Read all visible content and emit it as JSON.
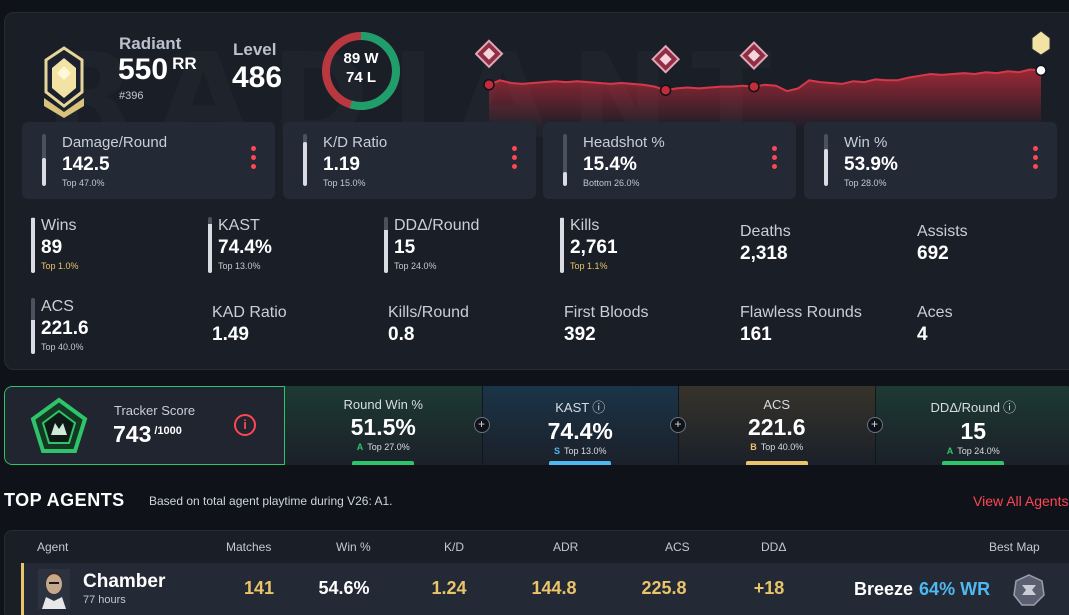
{
  "rank": {
    "name": "Radiant",
    "rr": "550",
    "rr_unit": "RR",
    "leaderboard": "#396",
    "watermark": "RADIANT"
  },
  "level": {
    "label": "Level",
    "value": "486"
  },
  "record": {
    "wins": "89 W",
    "losses": "74 L",
    "win_fraction": 0.546
  },
  "rr_history": {
    "values": [
      38,
      43,
      40,
      39,
      40,
      41,
      42,
      41,
      42,
      41,
      40,
      39,
      40,
      39,
      38,
      36,
      32,
      34,
      35,
      34,
      35,
      36,
      36,
      37,
      36,
      38,
      37,
      31,
      34,
      43,
      41,
      40,
      39,
      42,
      41,
      44,
      43,
      43,
      46,
      48,
      50,
      49,
      50,
      51,
      50,
      52,
      51,
      53,
      52,
      55,
      54
    ],
    "markers": [
      0,
      16,
      24,
      51
    ]
  },
  "top_stats": [
    {
      "label": "Damage/Round",
      "value": "142.5",
      "percentile": "Top 47.0%",
      "fill": 0.53
    },
    {
      "label": "K/D Ratio",
      "value": "1.19",
      "percentile": "Top 15.0%",
      "fill": 0.85
    },
    {
      "label": "Headshot %",
      "value": "15.4%",
      "percentile": "Bottom 26.0%",
      "fill": 0.26
    },
    {
      "label": "Win %",
      "value": "53.9%",
      "percentile": "Top 28.0%",
      "fill": 0.72
    }
  ],
  "stats_row1": [
    {
      "label": "Wins",
      "value": "89",
      "percentile": "Top 1.0%",
      "gold": true,
      "fill": 0.99
    },
    {
      "label": "KAST",
      "value": "74.4%",
      "percentile": "Top 13.0%",
      "gold": false,
      "fill": 0.87
    },
    {
      "label": "DDΔ/Round",
      "value": "15",
      "percentile": "Top 24.0%",
      "gold": false,
      "fill": 0.76
    },
    {
      "label": "Kills",
      "value": "2,761",
      "percentile": "Top 1.1%",
      "gold": true,
      "fill": 0.99
    },
    {
      "label": "Deaths",
      "value": "2,318"
    },
    {
      "label": "Assists",
      "value": "692"
    }
  ],
  "stats_row2": [
    {
      "label": "ACS",
      "value": "221.6",
      "percentile": "Top 40.0%",
      "gold": false,
      "fill": 0.6
    },
    {
      "label": "KAD Ratio",
      "value": "1.49"
    },
    {
      "label": "Kills/Round",
      "value": "0.8"
    },
    {
      "label": "First Bloods",
      "value": "392"
    },
    {
      "label": "Flawless Rounds",
      "value": "161"
    },
    {
      "label": "Aces",
      "value": "4"
    }
  ],
  "tracker": {
    "label": "Tracker Score",
    "value": "743",
    "denominator": "/1000",
    "info_icon": "i",
    "plus": "+",
    "cells": [
      {
        "label": "Round Win %",
        "value": "51.5%",
        "grade": "A",
        "percentile": "Top 27.0%",
        "color": "#2ec56a",
        "bg": "#1d3a32",
        "info": ""
      },
      {
        "label": "KAST",
        "value": "74.4%",
        "grade": "S",
        "percentile": "Top 13.0%",
        "color": "#4fb8f0",
        "bg": "#1b3448",
        "info": "ⓘ"
      },
      {
        "label": "ACS",
        "value": "221.6",
        "grade": "B",
        "percentile": "Top 40.0%",
        "color": "#e9c46a",
        "bg": "#36332a",
        "info": ""
      },
      {
        "label": "DDΔ/Round",
        "value": "15",
        "grade": "A",
        "percentile": "Top 24.0%",
        "color": "#2ec56a",
        "bg": "#1d3a32",
        "info": "ⓘ"
      }
    ]
  },
  "top_agents": {
    "title": "TOP AGENTS",
    "subtitle": "Based on total agent playtime during V26: A1.",
    "view_all": "View All Agents",
    "headers": [
      "Agent",
      "Matches",
      "Win %",
      "K/D",
      "ADR",
      "ACS",
      "DDΔ",
      "Best Map"
    ],
    "rows": [
      {
        "agent": "Chamber",
        "hours": "77 hours",
        "matches": "141",
        "win": "54.6%",
        "kd": "1.24",
        "adr": "144.8",
        "acs": "225.8",
        "dd": "+18",
        "map": "Breeze",
        "map_wr": "64% WR"
      }
    ]
  }
}
